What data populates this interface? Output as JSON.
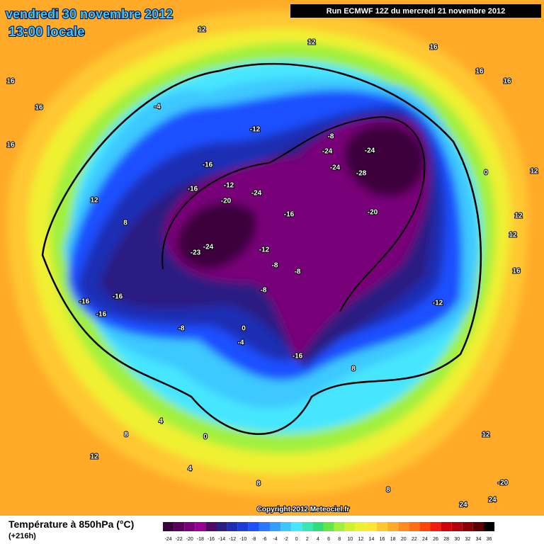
{
  "header": {
    "date": "vendredi 30 novembre 2012",
    "time": "13:00 locale",
    "run": "Run ECMWF 12Z du mercredi 21 novembre 2012"
  },
  "copyright": "Copyright 2012 Meteociel.fr",
  "legend": {
    "title": "Température à 850hPa (°C)",
    "lead": "(+216h)",
    "scale": [
      "-24",
      "-22",
      "-20",
      "-18",
      "-16",
      "-14",
      "-12",
      "-10",
      "-8",
      "-6",
      "-4",
      "-2",
      "0",
      "2",
      "4",
      "6",
      "8",
      "10",
      "12",
      "14",
      "16",
      "18",
      "20",
      "22",
      "24",
      "26",
      "28",
      "30",
      "32",
      "34",
      "36"
    ],
    "colors": [
      "#3c003c",
      "#5a005a",
      "#780078",
      "#960096",
      "#500a64",
      "#2a1e82",
      "#1e2db4",
      "#1e3cdc",
      "#1e50ff",
      "#2878ff",
      "#32a0ff",
      "#3cc8ff",
      "#46e6ff",
      "#3ce6b4",
      "#32dc78",
      "#64e646",
      "#a0f03c",
      "#d2f032",
      "#f0f032",
      "#ffe632",
      "#ffc832",
      "#ffaa28",
      "#ff8c1e",
      "#ff6e14",
      "#ff460a",
      "#f01e0a",
      "#d2000a",
      "#b4000a",
      "#8c0005",
      "#5a0000",
      "#000000"
    ]
  },
  "map_labels": [
    "16",
    "16",
    "16",
    "12",
    "12",
    "16",
    "16",
    "16",
    "-4",
    "-12",
    "-8",
    "-24",
    "-24",
    "-24",
    "-28",
    "-16",
    "-12",
    "-24",
    "-20",
    "-16",
    "-16",
    "-20",
    "-12",
    "-23",
    "-24",
    "-8",
    "-8",
    "-8",
    "-16",
    "-16",
    "-16",
    "-8",
    "0",
    "-4",
    "-16",
    "-12",
    "0",
    "12",
    "12",
    "12",
    "16",
    "8",
    "8",
    "4",
    "0",
    "4",
    "12",
    "8",
    "8",
    "12",
    "-20",
    "24",
    "24",
    "12",
    "8"
  ]
}
